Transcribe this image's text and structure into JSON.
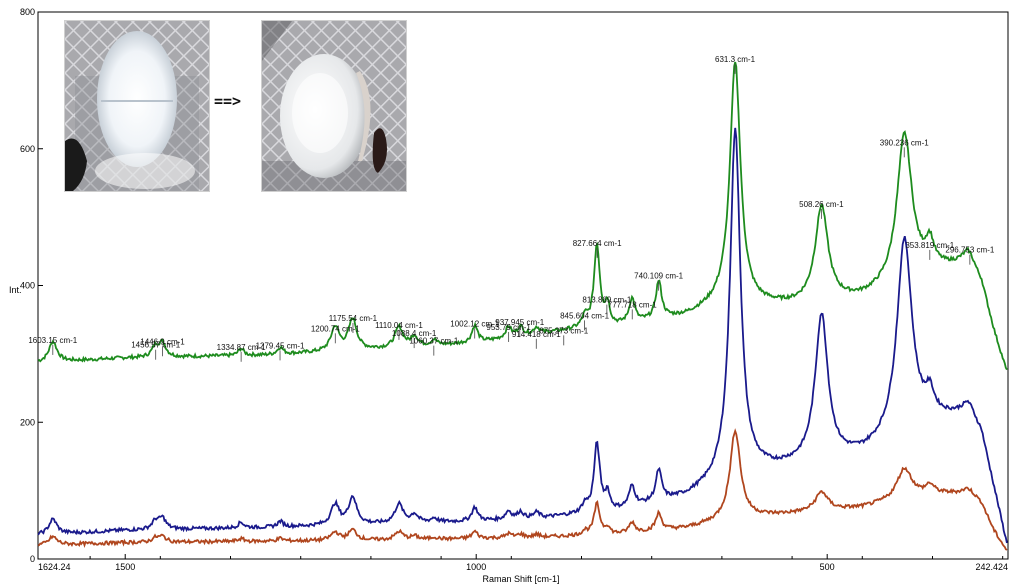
{
  "chart_data": {
    "type": "line",
    "xlabel": "Raman Shift [cm-1]",
    "ylabel": "Int.",
    "xlim": [
      1624.24,
      242.424
    ],
    "xlim_labels": [
      "1624.24",
      "242.424"
    ],
    "ylim": [
      0,
      800
    ],
    "x_ticks": [
      1500,
      1000,
      500
    ],
    "y_ticks": [
      0,
      200,
      400,
      600,
      800
    ],
    "grid": false,
    "legend": "none",
    "series": [
      {
        "color": "#1e8c1e",
        "baseline": [
          [
            1624,
            287
          ],
          [
            1500,
            294
          ],
          [
            1300,
            298
          ],
          [
            1100,
            309
          ],
          [
            1000,
            316
          ],
          [
            900,
            330
          ],
          [
            850,
            336
          ],
          [
            800,
            340
          ],
          [
            700,
            355
          ],
          [
            650,
            372
          ],
          [
            600,
            370
          ],
          [
            550,
            370
          ],
          [
            500,
            374
          ],
          [
            450,
            380
          ],
          [
            400,
            395
          ],
          [
            350,
            420
          ],
          [
            300,
            430
          ],
          [
            280,
            400
          ],
          [
            262,
            330
          ],
          [
            243,
            268
          ]
        ],
        "peaks": [
          [
            1603,
            30,
            7
          ],
          [
            1457,
            15,
            6
          ],
          [
            1447,
            20,
            6
          ],
          [
            1335,
            10,
            5
          ],
          [
            1279,
            10,
            5
          ],
          [
            1201,
            35,
            7
          ],
          [
            1176,
            45,
            7
          ],
          [
            1110,
            30,
            7
          ],
          [
            1088,
            15,
            6
          ],
          [
            1060,
            8,
            5
          ],
          [
            1002,
            25,
            5
          ],
          [
            954,
            16,
            5
          ],
          [
            937,
            14,
            5
          ],
          [
            914,
            10,
            5
          ],
          [
            845,
            15,
            5
          ],
          [
            828,
            120,
            5
          ],
          [
            813,
            30,
            4
          ],
          [
            778,
            35,
            5
          ],
          [
            740,
            55,
            5
          ],
          [
            631,
            355,
            9
          ],
          [
            508,
            140,
            11
          ],
          [
            390,
            220,
            13
          ],
          [
            354,
            35,
            7
          ],
          [
            297,
            18,
            12
          ]
        ]
      },
      {
        "color": "#1a1a8c",
        "baseline": [
          [
            1624,
            35
          ],
          [
            1500,
            42
          ],
          [
            1300,
            46
          ],
          [
            1100,
            52
          ],
          [
            1000,
            55
          ],
          [
            900,
            60
          ],
          [
            850,
            65
          ],
          [
            800,
            70
          ],
          [
            700,
            90
          ],
          [
            650,
            110
          ],
          [
            600,
            125
          ],
          [
            550,
            133
          ],
          [
            500,
            140
          ],
          [
            450,
            150
          ],
          [
            400,
            170
          ],
          [
            350,
            200
          ],
          [
            300,
            210
          ],
          [
            280,
            180
          ],
          [
            262,
            100
          ],
          [
            243,
            15
          ]
        ],
        "peaks": [
          [
            1603,
            22,
            7
          ],
          [
            1457,
            12,
            6
          ],
          [
            1447,
            16,
            6
          ],
          [
            1335,
            8,
            5
          ],
          [
            1279,
            8,
            5
          ],
          [
            1201,
            30,
            7
          ],
          [
            1176,
            40,
            7
          ],
          [
            1110,
            28,
            7
          ],
          [
            1088,
            12,
            6
          ],
          [
            1060,
            6,
            5
          ],
          [
            1002,
            20,
            5
          ],
          [
            954,
            12,
            5
          ],
          [
            937,
            10,
            5
          ],
          [
            914,
            8,
            5
          ],
          [
            845,
            12,
            5
          ],
          [
            828,
            100,
            5
          ],
          [
            813,
            25,
            4
          ],
          [
            778,
            30,
            5
          ],
          [
            740,
            45,
            5
          ],
          [
            631,
            510,
            9
          ],
          [
            508,
            215,
            11
          ],
          [
            390,
            290,
            13
          ],
          [
            354,
            30,
            7
          ],
          [
            297,
            15,
            12
          ]
        ]
      },
      {
        "color": "#b0461e",
        "baseline": [
          [
            1624,
            20
          ],
          [
            1500,
            24
          ],
          [
            1300,
            26
          ],
          [
            1100,
            28
          ],
          [
            1000,
            30
          ],
          [
            900,
            32
          ],
          [
            850,
            34
          ],
          [
            800,
            36
          ],
          [
            700,
            45
          ],
          [
            650,
            55
          ],
          [
            600,
            62
          ],
          [
            550,
            66
          ],
          [
            500,
            70
          ],
          [
            450,
            75
          ],
          [
            400,
            85
          ],
          [
            350,
            95
          ],
          [
            300,
            95
          ],
          [
            280,
            80
          ],
          [
            262,
            40
          ],
          [
            243,
            10
          ]
        ],
        "peaks": [
          [
            1603,
            12,
            7
          ],
          [
            1457,
            6,
            6
          ],
          [
            1447,
            8,
            6
          ],
          [
            1335,
            4,
            5
          ],
          [
            1279,
            4,
            5
          ],
          [
            1201,
            12,
            7
          ],
          [
            1176,
            15,
            7
          ],
          [
            1110,
            12,
            7
          ],
          [
            1088,
            5,
            6
          ],
          [
            1060,
            3,
            5
          ],
          [
            1002,
            10,
            5
          ],
          [
            954,
            6,
            5
          ],
          [
            937,
            5,
            5
          ],
          [
            914,
            4,
            5
          ],
          [
            845,
            6,
            5
          ],
          [
            828,
            45,
            5
          ],
          [
            813,
            10,
            4
          ],
          [
            778,
            15,
            5
          ],
          [
            740,
            25,
            5
          ],
          [
            631,
            130,
            9
          ],
          [
            508,
            28,
            11
          ],
          [
            390,
            45,
            13
          ],
          [
            354,
            12,
            7
          ],
          [
            297,
            8,
            12
          ]
        ]
      }
    ],
    "peak_labels": [
      {
        "x": 1603.15,
        "y": 316,
        "text": "1603.15 cm-1"
      },
      {
        "x": 1456.57,
        "y": 309,
        "text": "1456.57 cm-1"
      },
      {
        "x": 1446.9,
        "y": 314,
        "text": "1446.9 cm-1"
      },
      {
        "x": 1334.87,
        "y": 306,
        "text": "1334.87 cm-1"
      },
      {
        "x": 1279.45,
        "y": 308,
        "text": "1279.45 cm-1"
      },
      {
        "x": 1200.74,
        "y": 333,
        "text": "1200.74 cm-1"
      },
      {
        "x": 1175.54,
        "y": 348,
        "text": "1175.54 cm-1"
      },
      {
        "x": 1110.04,
        "y": 338,
        "text": "1110.04 cm-1"
      },
      {
        "x": 1088.4,
        "y": 326,
        "text": "1088.4 cm-1"
      },
      {
        "x": 1060.37,
        "y": 315,
        "text": "1060.37 cm-1"
      },
      {
        "x": 1002.12,
        "y": 340,
        "text": "1002.12 cm-1"
      },
      {
        "x": 953.79,
        "y": 335,
        "text": "953.79 cm-1"
      },
      {
        "x": 937.945,
        "y": 342,
        "text": "937.945 cm-1"
      },
      {
        "x": 914.418,
        "y": 325,
        "text": "914.418 cm-1"
      },
      {
        "x": 875.273,
        "y": 330,
        "text": "875.273 cm-1"
      },
      {
        "x": 845.604,
        "y": 352,
        "text": "845.604 cm-1"
      },
      {
        "x": 827.664,
        "y": 458,
        "text": "827.664 cm-1"
      },
      {
        "x": 813.869,
        "y": 375,
        "text": "813.869 cm-1"
      },
      {
        "x": 777.718,
        "y": 368,
        "text": "777.718 cm-1"
      },
      {
        "x": 740.109,
        "y": 410,
        "text": "740.109 cm-1"
      },
      {
        "x": 631.3,
        "y": 727,
        "text": "631.3 cm-1"
      },
      {
        "x": 508.26,
        "y": 515,
        "text": "508.26 cm-1"
      },
      {
        "x": 390.236,
        "y": 605,
        "text": "390.236 cm-1"
      },
      {
        "x": 353.819,
        "y": 455,
        "text": "353.819 cm-1"
      },
      {
        "x": 296.753,
        "y": 448,
        "text": "296.753 cm-1"
      }
    ]
  },
  "inset": {
    "arrow": "==>"
  }
}
